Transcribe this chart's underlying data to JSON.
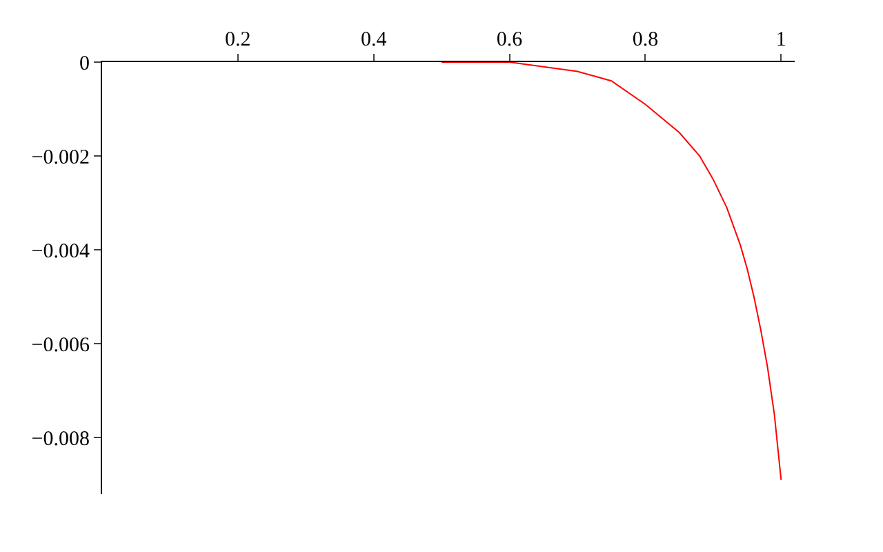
{
  "chart_data": {
    "type": "line",
    "x": [
      0.5,
      0.55,
      0.6,
      0.65,
      0.7,
      0.75,
      0.8,
      0.85,
      0.88,
      0.9,
      0.92,
      0.94,
      0.95,
      0.96,
      0.97,
      0.98,
      0.99,
      1.0
    ],
    "series": [
      {
        "color": "#ff0000",
        "values": [
          0,
          0,
          0,
          -0.0001,
          -0.0002,
          -0.0004,
          -0.0009,
          -0.0015,
          -0.002,
          -0.0025,
          -0.0031,
          -0.0039,
          -0.0044,
          -0.005,
          -0.0057,
          -0.0065,
          -0.0075,
          -0.0089
        ]
      }
    ],
    "xlim": [
      0,
      1.02
    ],
    "ylim": [
      -0.0092,
      0
    ],
    "xticks": [
      0.2,
      0.4,
      0.6,
      0.8,
      1
    ],
    "yticks": [
      0,
      {
        "value": -0.002,
        "label": "−0.002"
      },
      {
        "value": -0.004,
        "label": "−0.004"
      },
      {
        "value": -0.006,
        "label": "−0.006"
      },
      {
        "value": -0.008,
        "label": "−0.008"
      }
    ],
    "grid": false,
    "marker": "none",
    "line_style": "solid"
  }
}
